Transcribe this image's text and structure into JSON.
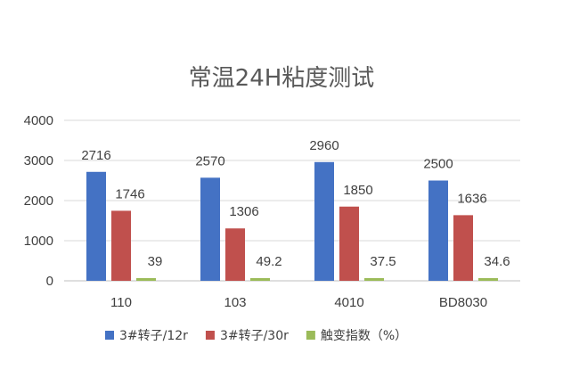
{
  "chart_data": {
    "type": "bar",
    "title": "常温24H粘度测试",
    "categories": [
      "110",
      "103",
      "4010",
      "BD8030"
    ],
    "series": [
      {
        "name": "3#转子/12r",
        "values": [
          2716,
          2570,
          2960,
          2500
        ],
        "color": "#4472C4"
      },
      {
        "name": "3#转子/30r",
        "values": [
          1746,
          1306,
          1850,
          1636
        ],
        "color": "#C0504D"
      },
      {
        "name": "触变指数（%）",
        "values": [
          39,
          49.2,
          37.5,
          34.6
        ],
        "color": "#9BBB59"
      }
    ],
    "ylim": [
      0,
      4000
    ],
    "yticks": [
      0,
      1000,
      2000,
      3000,
      4000
    ],
    "grid": true,
    "legend_position": "bottom",
    "data_labels": true
  }
}
